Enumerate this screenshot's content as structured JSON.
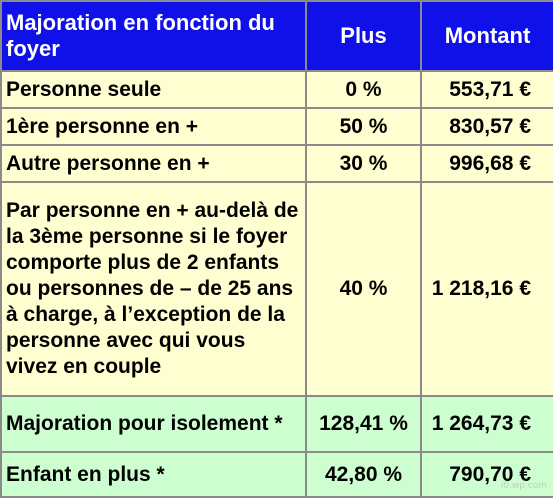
{
  "header": {
    "col1": "Majoration en fonction du foyer",
    "col2": "Plus",
    "col3": "Montant"
  },
  "rows": [
    {
      "label": "Personne seule",
      "plus": "0 %",
      "montant": "553,71 €"
    },
    {
      "label": "1ère personne en +",
      "plus": "50 %",
      "montant": "830,57 €"
    },
    {
      "label": "Autre personne en +",
      "plus": "30 %",
      "montant": "996,68 €"
    },
    {
      "label": "Par personne en + au-delà de la 3ème personne si le foyer comporte plus de 2 enfants ou personnes de – de 25 ans à charge, à l’exception de la personne avec qui vous vivez en couple",
      "plus": "40 %",
      "montant": "1 218,16 €"
    },
    {
      "label": "Majoration pour isolement *",
      "plus": "128,41 %",
      "montant": "1 264,73 €"
    },
    {
      "label": "Enfant en plus *",
      "plus": "42,80 %",
      "montant": "790,70 €"
    }
  ],
  "colors": {
    "header_bg": "#1010e8",
    "row_yellow": "#fefed0",
    "row_green": "#cdfed0"
  },
  "watermark": "i0.wp.com"
}
